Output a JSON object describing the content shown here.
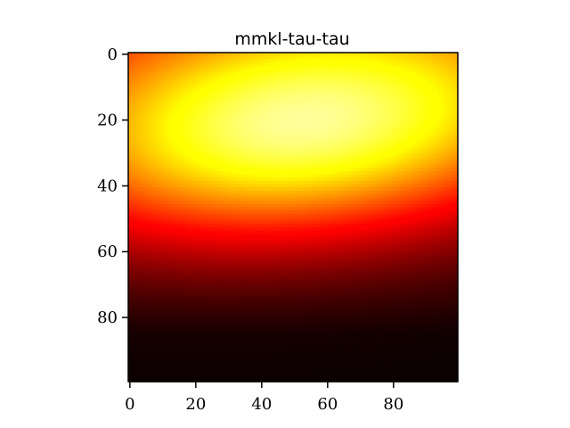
{
  "chart_data": {
    "type": "heatmap",
    "title": "mmkl-tau-tau",
    "xlabel": "",
    "ylabel": "",
    "shape": [
      100,
      100
    ],
    "xlim": [
      -0.5,
      99.5
    ],
    "ylim": [
      99.5,
      -0.5
    ],
    "y_axis_inverted": true,
    "xticks": [
      0,
      20,
      40,
      60,
      80
    ],
    "yticks": [
      0,
      20,
      40,
      60,
      80
    ],
    "xtick_labels": [
      "0",
      "20",
      "40",
      "60",
      "80"
    ],
    "ytick_labels": [
      "0",
      "20",
      "40",
      "60",
      "80"
    ],
    "colormap": "hot",
    "value_range": [
      0,
      1
    ],
    "peak": {
      "row": 20,
      "col": 53,
      "value": 1.0
    },
    "approx_values": [
      {
        "row": 0,
        "col": 0,
        "value": 0.62
      },
      {
        "row": 0,
        "col": 53,
        "value": 0.72
      },
      {
        "row": 0,
        "col": 99,
        "value": 0.45
      },
      {
        "row": 10,
        "col": 20,
        "value": 0.78
      },
      {
        "row": 20,
        "col": 0,
        "value": 0.7
      },
      {
        "row": 20,
        "col": 53,
        "value": 1.0
      },
      {
        "row": 20,
        "col": 99,
        "value": 0.72
      },
      {
        "row": 35,
        "col": 0,
        "value": 0.42
      },
      {
        "row": 35,
        "col": 53,
        "value": 0.72
      },
      {
        "row": 45,
        "col": 80,
        "value": 0.42
      },
      {
        "row": 60,
        "col": 0,
        "value": 0.06
      },
      {
        "row": 60,
        "col": 99,
        "value": 0.15
      },
      {
        "row": 99,
        "col": 0,
        "value": 0.0
      },
      {
        "row": 99,
        "col": 99,
        "value": 0.02
      }
    ],
    "grid": false,
    "legend": "none"
  },
  "colors": {
    "background": "#ffffff",
    "axis": "#000000",
    "colormap_stops": [
      "#0b0000",
      "#ff0000",
      "#ffff00",
      "#ffffff"
    ]
  }
}
